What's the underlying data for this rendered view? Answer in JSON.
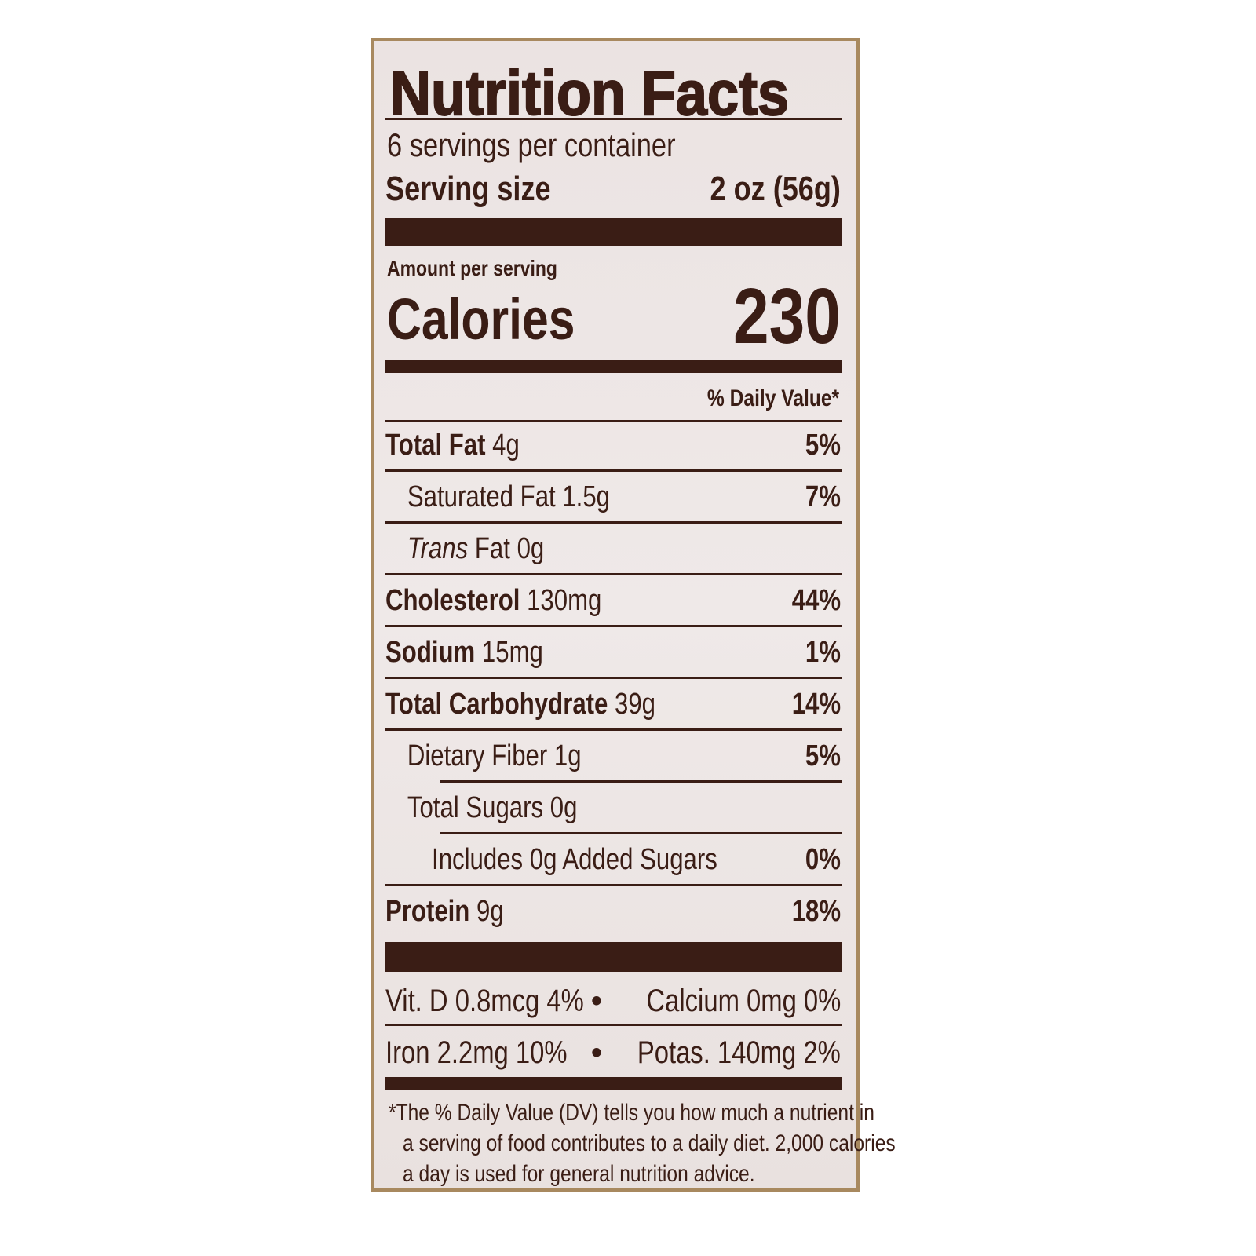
{
  "label": {
    "title": "Nutrition Facts",
    "servings_per_container": "6 servings per container",
    "serving_size_label": "Serving size",
    "serving_size_value": "2 oz (56g)",
    "amount_per_serving": "Amount per serving",
    "calories_label": "Calories",
    "calories_value": "230",
    "daily_value_header": "% Daily Value*",
    "nutrients": [
      {
        "name": "Total Fat",
        "amount": "4g",
        "dv": "5%"
      },
      {
        "name": "Saturated Fat",
        "amount": "1.5g",
        "dv": "7%"
      },
      {
        "name": "Trans",
        "name_suffix": " Fat",
        "amount": "0g",
        "dv": ""
      },
      {
        "name": "Cholesterol",
        "amount": "130mg",
        "dv": "44%"
      },
      {
        "name": "Sodium",
        "amount": "15mg",
        "dv": "1%"
      },
      {
        "name": "Total Carbohydrate",
        "amount": "39g",
        "dv": "14%"
      },
      {
        "name": "Dietary Fiber",
        "amount": "1g",
        "dv": "5%"
      },
      {
        "name": "Total Sugars",
        "amount": "0g",
        "dv": ""
      },
      {
        "name": "Includes 0g Added Sugars",
        "amount": "",
        "dv": "0%"
      },
      {
        "name": "Protein",
        "amount": "9g",
        "dv": "18%"
      }
    ],
    "micros": [
      {
        "left": "Vit. D 0.8mcg 4%",
        "right": "Calcium 0mg 0%"
      },
      {
        "left": "Iron 2.2mg 10%",
        "right": "Potas. 140mg 2%"
      }
    ],
    "bullet": "•",
    "footnote": "* The % Daily Value (DV) tells you how much a nutrient in a serving of food contributes to a daily diet. 2,000 calories a day is used for general nutrition advice.",
    "footnote_lines": [
      "*The % Daily Value (DV) tells you how much a nutrient in",
      "a serving of food contributes to a daily diet. 2,000 calories",
      "a day is used for general nutrition advice."
    ]
  },
  "colors": {
    "ink": "#3a1d15",
    "panel": "#ebe3e2",
    "border": "#a8895f"
  }
}
